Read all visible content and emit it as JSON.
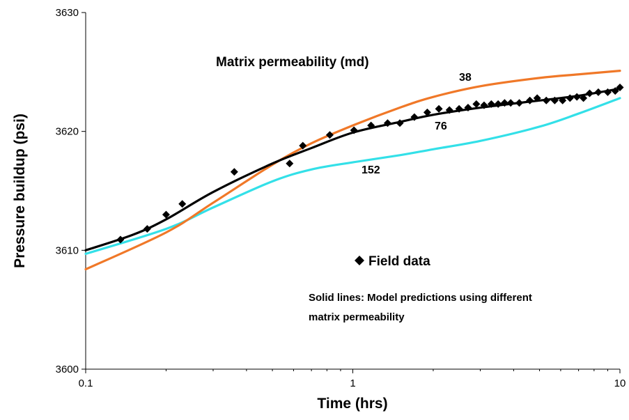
{
  "chart_data": {
    "type": "scatter",
    "xlabel": "Time (hrs)",
    "ylabel": "Pressure buildup (psi)",
    "x_scale": "log",
    "xlim": [
      0.1,
      10
    ],
    "ylim": [
      3600,
      3630
    ],
    "x_ticks": [
      0.1,
      1,
      10
    ],
    "x_tick_labels": [
      "0.1",
      "1",
      "10"
    ],
    "y_ticks": [
      3600,
      3610,
      3620,
      3630
    ],
    "y_tick_labels": [
      "3600",
      "3610",
      "3620",
      "3630"
    ],
    "grid": false,
    "legend_title": "Matrix permeability (md)",
    "series": [
      {
        "name": "38",
        "kind": "line",
        "color": "#F07828",
        "x": [
          0.1,
          0.2,
          0.3,
          0.5,
          0.7,
          1.0,
          1.5,
          2.0,
          3.0,
          5.0,
          7.0,
          10.0
        ],
        "y": [
          3608.4,
          3611.5,
          3614.0,
          3617.2,
          3619.0,
          3620.5,
          3622.0,
          3622.9,
          3623.8,
          3624.5,
          3624.8,
          3625.1
        ]
      },
      {
        "name": "76",
        "kind": "line",
        "color": "#000000",
        "x": [
          0.1,
          0.15,
          0.2,
          0.3,
          0.5,
          0.7,
          1.0,
          1.5,
          2.0,
          3.0,
          5.0,
          7.0,
          10.0
        ],
        "y": [
          3610.0,
          3611.3,
          3612.6,
          3614.9,
          3617.3,
          3618.6,
          3619.9,
          3620.8,
          3621.4,
          3622.0,
          3622.6,
          3623.0,
          3623.6
        ]
      },
      {
        "name": "152",
        "kind": "line",
        "color": "#33E0E8",
        "x": [
          0.1,
          0.2,
          0.3,
          0.5,
          0.7,
          1.0,
          1.5,
          2.0,
          3.0,
          5.0,
          7.0,
          10.0
        ],
        "y": [
          3609.7,
          3611.8,
          3613.6,
          3615.8,
          3616.8,
          3617.4,
          3618.0,
          3618.5,
          3619.2,
          3620.4,
          3621.5,
          3622.8
        ]
      },
      {
        "name": "Field data",
        "kind": "points",
        "color": "#000000",
        "x": [
          0.135,
          0.17,
          0.2,
          0.23,
          0.36,
          0.58,
          0.65,
          0.82,
          1.01,
          1.17,
          1.35,
          1.5,
          1.7,
          1.9,
          2.1,
          2.3,
          2.5,
          2.7,
          2.9,
          3.1,
          3.3,
          3.5,
          3.7,
          3.9,
          4.2,
          4.6,
          4.9,
          5.3,
          5.7,
          6.1,
          6.5,
          6.9,
          7.3,
          7.7,
          8.3,
          9.0,
          9.6,
          10.0
        ],
        "y": [
          3610.9,
          3611.8,
          3613.0,
          3613.9,
          3616.6,
          3617.3,
          3618.8,
          3619.7,
          3620.1,
          3620.5,
          3620.7,
          3620.7,
          3621.2,
          3621.6,
          3621.9,
          3621.8,
          3621.9,
          3622.0,
          3622.3,
          3622.2,
          3622.3,
          3622.3,
          3622.4,
          3622.4,
          3622.4,
          3622.6,
          3622.8,
          3622.6,
          3622.6,
          3622.6,
          3622.8,
          3622.9,
          3622.8,
          3623.2,
          3623.3,
          3623.3,
          3623.4,
          3623.7
        ]
      }
    ],
    "annotations": {
      "legend_title": "Matrix permeability (md)",
      "label_38": "38",
      "label_76": "76",
      "label_152": "152",
      "field_data": "Field data",
      "note_line1": "Solid lines: Model predictions using different",
      "note_line2": "matrix permeability"
    }
  }
}
